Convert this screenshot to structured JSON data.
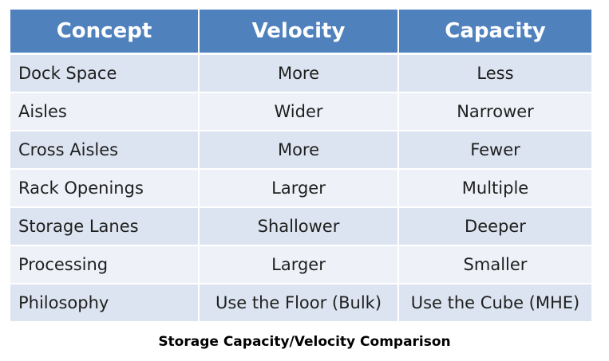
{
  "table": {
    "headers": [
      "Concept",
      "Velocity",
      "Capacity"
    ],
    "rows": [
      [
        "Dock Space",
        "More",
        "Less"
      ],
      [
        "Aisles",
        "Wider",
        "Narrower"
      ],
      [
        "Cross Aisles",
        "More",
        "Fewer"
      ],
      [
        "Rack Openings",
        "Larger",
        "Multiple"
      ],
      [
        "Storage Lanes",
        "Shallower",
        "Deeper"
      ],
      [
        "Processing",
        "Larger",
        "Smaller"
      ],
      [
        "Philosophy",
        "Use the Floor (Bulk)",
        "Use the Cube (MHE)"
      ]
    ]
  },
  "caption": "Storage Capacity/Velocity Comparison",
  "colors": {
    "header_bg": "#4f81bd",
    "row_odd": "#dbe4f0",
    "row_even": "#eef2f8"
  }
}
